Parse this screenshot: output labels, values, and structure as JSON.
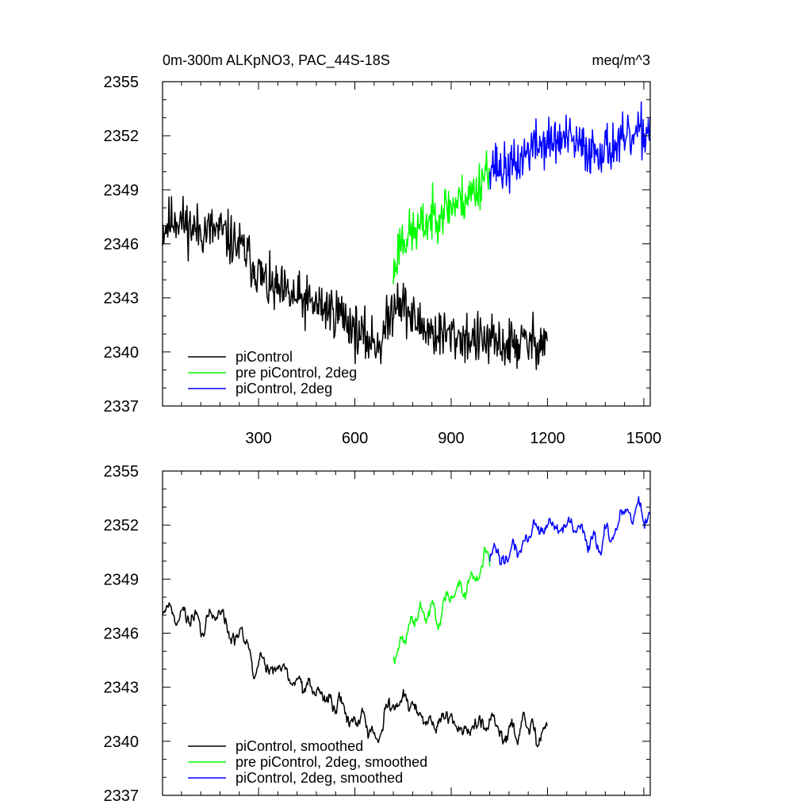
{
  "chart_data": [
    {
      "type": "line",
      "title_left": "0m-300m ALKpNO3, PAC_44S-18S",
      "title_right": "meq/m^3",
      "xlim": [
        1,
        1520
      ],
      "ylim": [
        2337,
        2355
      ],
      "yticks": [
        2337,
        2340,
        2343,
        2346,
        2349,
        2352,
        2355
      ],
      "xticks": [
        300,
        600,
        900,
        1200,
        1500
      ],
      "show_x_tick_labels": true,
      "legend": [
        "piControl",
        "pre piControl, 2deg",
        "piControl, 2deg"
      ],
      "legend_placement": "bottom-left",
      "series": [
        {
          "name": "piControl",
          "color": "#000000",
          "x_start": 1,
          "x_end": 1200,
          "anchors": [
            [
              1,
              2346.8
            ],
            [
              40,
              2347.5
            ],
            [
              100,
              2346.8
            ],
            [
              180,
              2346.7
            ],
            [
              260,
              2345.5
            ],
            [
              330,
              2343.6
            ],
            [
              380,
              2343.2
            ],
            [
              440,
              2342.8
            ],
            [
              500,
              2342.5
            ],
            [
              560,
              2342.1
            ],
            [
              620,
              2340.8
            ],
            [
              680,
              2340.5
            ],
            [
              710,
              2342.0
            ],
            [
              730,
              2343.2
            ],
            [
              780,
              2341.8
            ],
            [
              850,
              2341.0
            ],
            [
              950,
              2340.8
            ],
            [
              1050,
              2340.4
            ],
            [
              1150,
              2340.5
            ],
            [
              1200,
              2340.7
            ]
          ],
          "noise": 0.9,
          "smooth": 1,
          "seed": 11
        },
        {
          "name": "pre piControl, 2deg",
          "color": "#00ff00",
          "x_start": 720,
          "x_end": 1020,
          "anchors": [
            [
              720,
              2344.2
            ],
            [
              740,
              2346.2
            ],
            [
              800,
              2346.8
            ],
            [
              860,
              2347.8
            ],
            [
              920,
              2348.3
            ],
            [
              980,
              2349.0
            ],
            [
              1020,
              2350.6
            ]
          ],
          "noise": 0.85,
          "smooth": 1,
          "seed": 23
        },
        {
          "name": "piControl, 2deg",
          "color": "#0000ff",
          "x_start": 1020,
          "x_end": 1520,
          "anchors": [
            [
              1020,
              2350.6
            ],
            [
              1060,
              2350.1
            ],
            [
              1100,
              2350.3
            ],
            [
              1150,
              2351.4
            ],
            [
              1200,
              2351.6
            ],
            [
              1260,
              2351.8
            ],
            [
              1320,
              2351.2
            ],
            [
              1380,
              2351.3
            ],
            [
              1440,
              2351.6
            ],
            [
              1500,
              2352.2
            ],
            [
              1520,
              2352.4
            ]
          ],
          "noise": 0.85,
          "smooth": 1,
          "seed": 37
        }
      ]
    },
    {
      "type": "line",
      "title_left": "",
      "title_right": "",
      "xlim": [
        1,
        1520
      ],
      "ylim": [
        2337,
        2355
      ],
      "yticks": [
        2337,
        2340,
        2343,
        2346,
        2349,
        2352,
        2355
      ],
      "xticks": [
        300,
        600,
        900,
        1200,
        1500
      ],
      "show_x_tick_labels": false,
      "legend": [
        "piControl, smoothed",
        "pre piControl, 2deg, smoothed",
        "piControl, 2deg, smoothed"
      ],
      "legend_placement": "bottom-left",
      "series": [
        {
          "name": "piControl, smoothed",
          "color": "#000000",
          "x_start": 1,
          "x_end": 1200,
          "anchors": [
            [
              1,
              2348.0
            ],
            [
              40,
              2347.3
            ],
            [
              100,
              2346.8
            ],
            [
              180,
              2346.5
            ],
            [
              260,
              2345.2
            ],
            [
              330,
              2343.8
            ],
            [
              380,
              2343.3
            ],
            [
              440,
              2342.8
            ],
            [
              500,
              2342.5
            ],
            [
              560,
              2342.0
            ],
            [
              620,
              2340.9
            ],
            [
              680,
              2340.6
            ],
            [
              710,
              2342.0
            ],
            [
              730,
              2343.0
            ],
            [
              780,
              2341.7
            ],
            [
              850,
              2341.1
            ],
            [
              950,
              2340.9
            ],
            [
              1050,
              2340.5
            ],
            [
              1150,
              2340.6
            ],
            [
              1200,
              2340.9
            ]
          ],
          "noise": 0.75,
          "smooth": 4,
          "seed": 11
        },
        {
          "name": "pre piControl, 2deg, smoothed",
          "color": "#00ff00",
          "x_start": 720,
          "x_end": 1020,
          "anchors": [
            [
              720,
              2344.0
            ],
            [
              740,
              2346.0
            ],
            [
              800,
              2346.8
            ],
            [
              860,
              2347.6
            ],
            [
              920,
              2348.4
            ],
            [
              980,
              2349.2
            ],
            [
              1020,
              2351.6
            ]
          ],
          "noise": 0.7,
          "smooth": 4,
          "seed": 23
        },
        {
          "name": "piControl, 2deg, smoothed",
          "color": "#0000ff",
          "x_start": 1020,
          "x_end": 1520,
          "anchors": [
            [
              1020,
              2351.4
            ],
            [
              1060,
              2350.0
            ],
            [
              1100,
              2350.5
            ],
            [
              1150,
              2351.6
            ],
            [
              1200,
              2352.0
            ],
            [
              1260,
              2351.6
            ],
            [
              1320,
              2351.3
            ],
            [
              1380,
              2351.6
            ],
            [
              1440,
              2352.0
            ],
            [
              1500,
              2352.6
            ],
            [
              1520,
              2352.8
            ]
          ],
          "noise": 0.7,
          "smooth": 4,
          "seed": 37
        }
      ]
    }
  ]
}
